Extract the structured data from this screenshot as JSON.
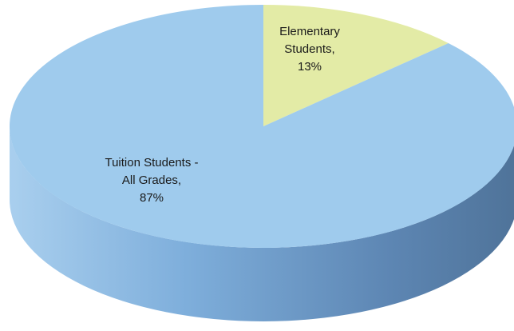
{
  "chart_data": {
    "type": "pie",
    "style": "3d",
    "title": "",
    "slices": [
      {
        "label_lines": [
          "Elementary",
          "Students,",
          "13%"
        ],
        "category": "Elementary Students",
        "value": 13,
        "color": "#e3eba6",
        "side_color": "#9aa86c"
      },
      {
        "label_lines": [
          "Tuition Students -",
          "All Grades,",
          "87%"
        ],
        "category": "Tuition Students - All Grades",
        "value": 87,
        "color": "#9fcbed",
        "side_color": "#6e9cc8"
      }
    ],
    "start_angle_deg": 0,
    "direction": "clockwise"
  }
}
